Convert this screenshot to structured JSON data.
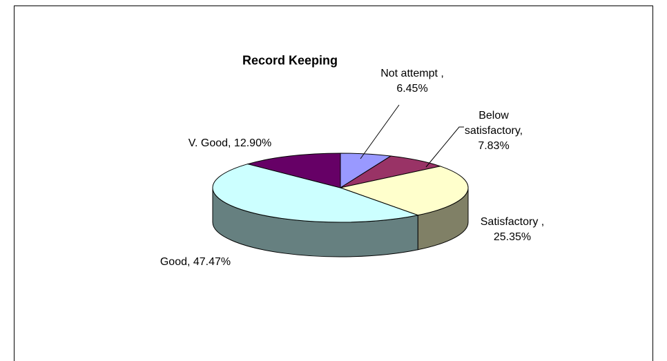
{
  "chart_data": {
    "type": "pie3d",
    "title": "Record Keeping",
    "values": [
      6.45,
      7.83,
      25.35,
      47.47,
      12.9
    ],
    "value_labels": [
      "Not attempt , 6.45%",
      "Below satisfactory, 7.83%",
      "Satisfactory , 25.35%",
      "Good, 47.47%",
      "V. Good, 12.90%"
    ],
    "colors": [
      "#9999ff",
      "#993366",
      "#ffffcc",
      "#ccffff",
      "#660066"
    ]
  }
}
